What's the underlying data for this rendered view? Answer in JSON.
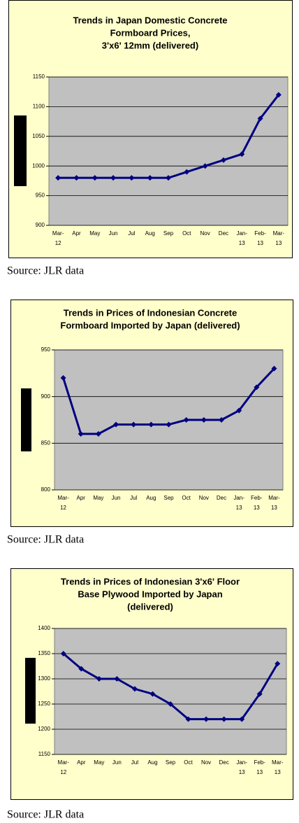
{
  "chart_data": [
    {
      "type": "line",
      "title": [
        "Trends in Japan Domestic Concrete",
        "Formboard Prices,",
        "3'x6' 12mm (delivered)"
      ],
      "categories": [
        "Mar-12",
        "Apr",
        "May",
        "Jun",
        "Jul",
        "Aug",
        "Sep",
        "Oct",
        "Nov",
        "Dec",
        "Jan-13",
        "Feb-13",
        "Mar-13"
      ],
      "values": [
        980,
        980,
        980,
        980,
        980,
        980,
        980,
        990,
        1000,
        1010,
        1020,
        1080,
        1120
      ],
      "color": "#000080",
      "ylim": [
        900,
        1150
      ],
      "yticks": [
        900,
        950,
        1000,
        1050,
        1100,
        1150
      ],
      "grid": true,
      "source": "Source: JLR data"
    },
    {
      "type": "line",
      "title": [
        "Trends in Prices of Indonesian Concrete",
        "Formboard Imported by Japan (delivered)"
      ],
      "categories": [
        "Mar-12",
        "Apr",
        "May",
        "Jun",
        "Jul",
        "Aug",
        "Sep",
        "Oct",
        "Nov",
        "Dec",
        "Jan-13",
        "Feb-13",
        "Mar-13"
      ],
      "values": [
        920,
        860,
        860,
        870,
        870,
        870,
        870,
        875,
        875,
        875,
        885,
        910,
        930
      ],
      "color": "#000080",
      "ylim": [
        800,
        950
      ],
      "yticks": [
        800,
        850,
        900,
        950
      ],
      "grid": true,
      "source": "Source: JLR data"
    },
    {
      "type": "line",
      "title": [
        "Trends in Prices of Indonesian 3'x6' Floor",
        "Base Plywood Imported by Japan",
        "(delivered)"
      ],
      "categories": [
        "Mar-12",
        "Apr",
        "May",
        "Jun",
        "Jul",
        "Aug",
        "Sep",
        "Oct",
        "Nov",
        "Dec",
        "Jan-13",
        "Feb-13",
        "Mar-13"
      ],
      "values": [
        1350,
        1320,
        1300,
        1300,
        1280,
        1270,
        1250,
        1220,
        1220,
        1220,
        1220,
        1270,
        1330
      ],
      "color": "#000080",
      "ylim": [
        1150,
        1400
      ],
      "yticks": [
        1150,
        1200,
        1250,
        1300,
        1350,
        1400
      ],
      "grid": true,
      "source": "Source: JLR data"
    }
  ]
}
